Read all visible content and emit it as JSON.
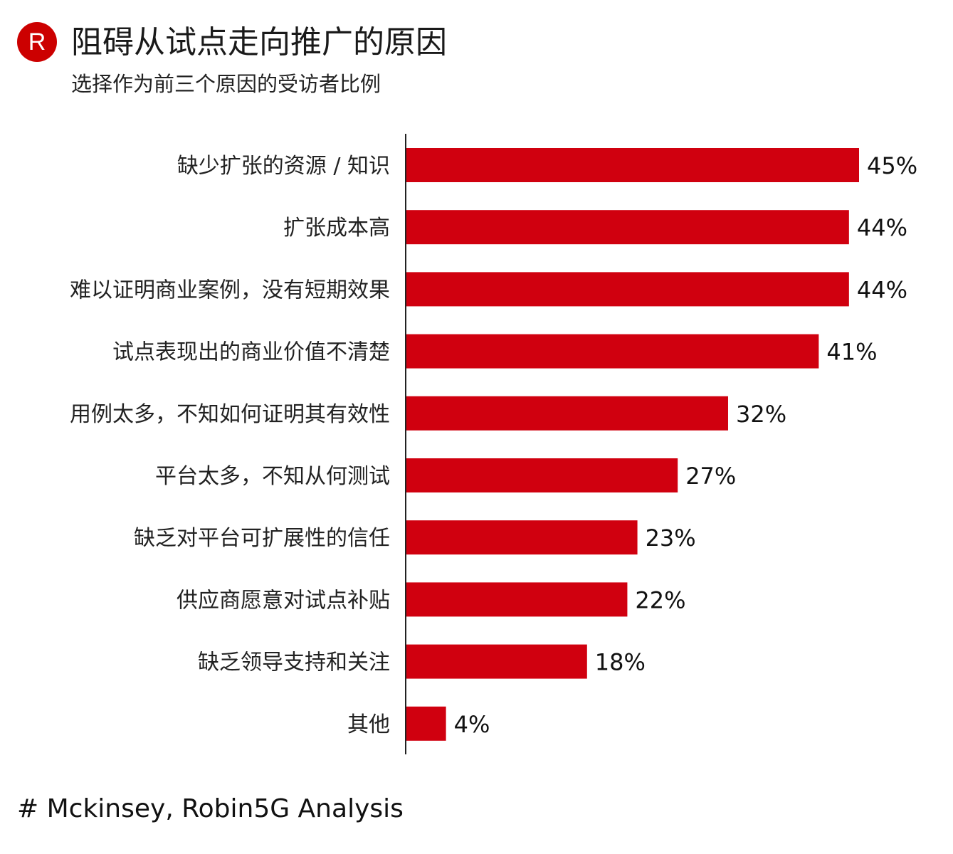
{
  "logo": {
    "letter": "R",
    "color": "#cc0000"
  },
  "header": {
    "title": "阻碍从试点走向推广的原因",
    "subtitle": "选择作为前三个原因的受访者比例"
  },
  "chart_data": {
    "type": "bar",
    "orientation": "horizontal",
    "title": "阻碍从试点走向推广的原因",
    "subtitle": "选择作为前三个原因的受访者比例",
    "xlabel": "",
    "ylabel": "",
    "xlim": [
      0,
      45
    ],
    "unit": "%",
    "bar_color": "#d0000f",
    "categories": [
      "缺少扩张的资源 / 知识",
      "扩张成本高",
      "难以证明商业案例，没有短期效果",
      "试点表现出的商业价值不清楚",
      "用例太多，不知如何证明其有效性",
      "平台太多，不知从何测试",
      "缺乏对平台可扩展性的信任",
      "供应商愿意对试点补贴",
      "缺乏领导支持和关注",
      "其他"
    ],
    "values": [
      45,
      44,
      44,
      41,
      32,
      27,
      23,
      22,
      18,
      4
    ],
    "labels": [
      "45%",
      "44%",
      "44%",
      "41%",
      "32%",
      "27%",
      "23%",
      "22%",
      "18%",
      "4%"
    ]
  },
  "footer": {
    "source": "# Mckinsey, Robin5G Analysis"
  }
}
